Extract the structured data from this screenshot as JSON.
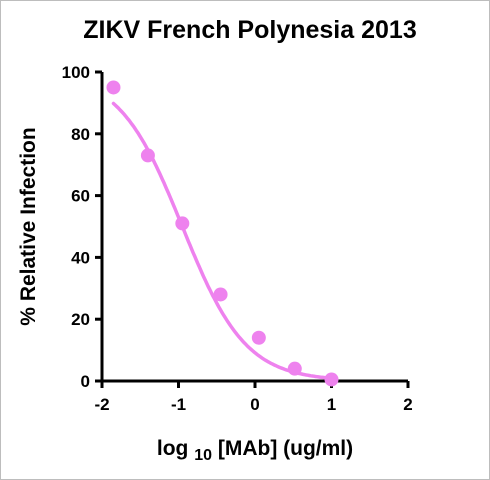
{
  "chart_data": {
    "type": "scatter",
    "title": "ZIKV French Polynesia 2013",
    "xlabel_parts": {
      "log": "log",
      "base": "10",
      "rest": "[MAb]  (ug/ml)"
    },
    "ylabel": "% Relative Infection",
    "xlim": [
      -2,
      2
    ],
    "ylim": [
      0,
      100
    ],
    "xticks": [
      "-2",
      "-1",
      "0",
      "1",
      "2"
    ],
    "yticks": [
      "0",
      "20",
      "40",
      "60",
      "80",
      "100"
    ],
    "grid": false,
    "legend": "none",
    "series": [
      {
        "color": "#ee82ee",
        "x": [
          -1.85,
          -1.4,
          -0.95,
          -0.45,
          0.05,
          0.52,
          1.0
        ],
        "y": [
          95,
          73,
          51,
          28,
          14,
          4,
          0.5
        ],
        "fit": "sigmoidal dose-response"
      }
    ]
  }
}
